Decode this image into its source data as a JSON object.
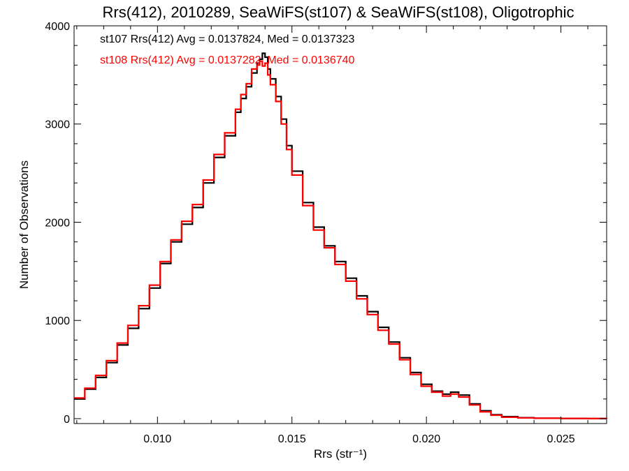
{
  "chart_data": {
    "type": "line",
    "step": true,
    "title": "Rrs(412), 2010289, SeaWiFS(st107) & SeaWiFS(st108), Oligotrophic",
    "xlabel": "Rrs (str⁻¹)",
    "ylabel": "Number of Observations",
    "xlim": [
      0.0069,
      0.0267
    ],
    "ylim": [
      -50,
      4000
    ],
    "xticks": [
      0.01,
      0.015,
      0.02,
      0.025
    ],
    "xtick_labels": [
      "0.010",
      "0.015",
      "0.020",
      "0.025"
    ],
    "yticks": [
      0,
      1000,
      2000,
      3000,
      4000
    ],
    "ytick_labels": [
      "0",
      "1000",
      "2000",
      "3000",
      "4000"
    ],
    "grid": false,
    "annotations": [
      {
        "text": "st107 Rrs(412) Avg = 0.0137824, Med = 0.0137323",
        "color": "#000000"
      },
      {
        "text": "st108 Rrs(412) Avg = 0.0137282, Med = 0.0136740",
        "color": "#ff0000"
      }
    ],
    "series": [
      {
        "color": "#000000",
        "x": [
          0.0069,
          0.0073,
          0.0077,
          0.0081,
          0.0085,
          0.0089,
          0.0093,
          0.0097,
          0.0101,
          0.0105,
          0.0109,
          0.0113,
          0.0117,
          0.0121,
          0.0125,
          0.0129,
          0.0131,
          0.0133,
          0.0135,
          0.0137,
          0.0138,
          0.0139,
          0.014,
          0.0141,
          0.0142,
          0.0144,
          0.0146,
          0.0148,
          0.015,
          0.0154,
          0.0158,
          0.0162,
          0.0166,
          0.017,
          0.0174,
          0.0178,
          0.0182,
          0.0186,
          0.019,
          0.0194,
          0.0198,
          0.0202,
          0.0206,
          0.0209,
          0.0212,
          0.0216,
          0.022,
          0.0224,
          0.0228,
          0.0234,
          0.024,
          0.025,
          0.026,
          0.0267
        ],
        "y": [
          200,
          300,
          420,
          570,
          750,
          920,
          1120,
          1330,
          1580,
          1800,
          1980,
          2150,
          2400,
          2660,
          2880,
          3120,
          3260,
          3380,
          3520,
          3620,
          3660,
          3720,
          3680,
          3560,
          3460,
          3280,
          3050,
          2780,
          2520,
          2200,
          1950,
          1760,
          1600,
          1430,
          1250,
          1090,
          930,
          780,
          620,
          470,
          350,
          280,
          250,
          270,
          240,
          150,
          80,
          40,
          20,
          10,
          5,
          2,
          1,
          0
        ]
      },
      {
        "color": "#ff0000",
        "x": [
          0.0069,
          0.0073,
          0.0077,
          0.0081,
          0.0085,
          0.0089,
          0.0093,
          0.0097,
          0.0101,
          0.0105,
          0.0109,
          0.0113,
          0.0117,
          0.0121,
          0.0125,
          0.0129,
          0.0131,
          0.0133,
          0.0135,
          0.0137,
          0.0138,
          0.0139,
          0.014,
          0.0141,
          0.0142,
          0.0144,
          0.0146,
          0.0148,
          0.015,
          0.0154,
          0.0158,
          0.0162,
          0.0166,
          0.017,
          0.0174,
          0.0178,
          0.0182,
          0.0186,
          0.019,
          0.0194,
          0.0198,
          0.0202,
          0.0206,
          0.0209,
          0.0212,
          0.0216,
          0.022,
          0.0224,
          0.0228,
          0.0234,
          0.024,
          0.025,
          0.026,
          0.0267
        ],
        "y": [
          210,
          310,
          440,
          590,
          770,
          950,
          1150,
          1360,
          1600,
          1820,
          2010,
          2180,
          2430,
          2690,
          2910,
          3150,
          3300,
          3410,
          3560,
          3600,
          3640,
          3590,
          3620,
          3500,
          3400,
          3230,
          3000,
          2740,
          2480,
          2170,
          1920,
          1740,
          1570,
          1400,
          1220,
          1060,
          900,
          760,
          600,
          450,
          330,
          270,
          230,
          250,
          220,
          140,
          70,
          35,
          15,
          8,
          4,
          2,
          1,
          0
        ]
      }
    ]
  }
}
